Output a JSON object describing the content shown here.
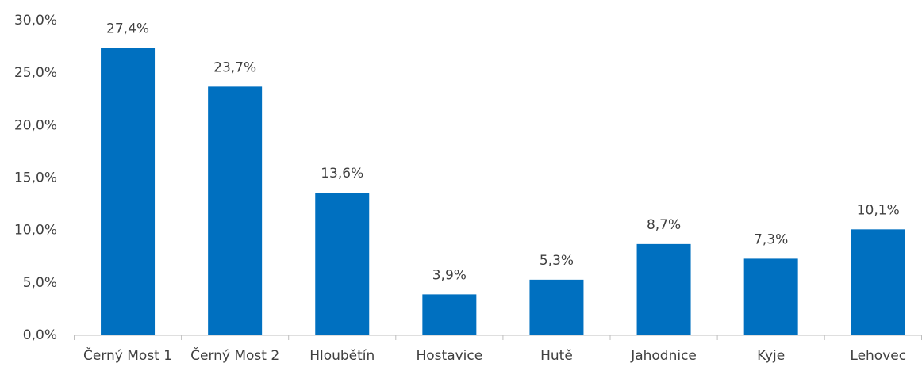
{
  "chart_data": {
    "type": "bar",
    "categories": [
      "Černý Most 1",
      "Černý Most 2",
      "Hloubětín",
      "Hostavice",
      "Hutě",
      "Jahodnice",
      "Kyje",
      "Lehovec"
    ],
    "values": [
      27.4,
      23.7,
      13.6,
      3.9,
      5.3,
      8.7,
      7.3,
      10.1
    ],
    "value_labels": [
      "27,4%",
      "23,7%",
      "13,6%",
      "3,9%",
      "5,3%",
      "8,7%",
      "7,3%",
      "10,1%"
    ],
    "color": "#0070c0",
    "ylim": [
      0,
      30
    ],
    "yticks": [
      {
        "value": 0,
        "label": "0,0%"
      },
      {
        "value": 5,
        "label": "5,0%"
      },
      {
        "value": 10,
        "label": "10,0%"
      },
      {
        "value": 15,
        "label": "15,0%"
      },
      {
        "value": 20,
        "label": "20,0%"
      },
      {
        "value": 25,
        "label": "25,0%"
      },
      {
        "value": 30,
        "label": "30,0%"
      }
    ],
    "grid": false
  }
}
